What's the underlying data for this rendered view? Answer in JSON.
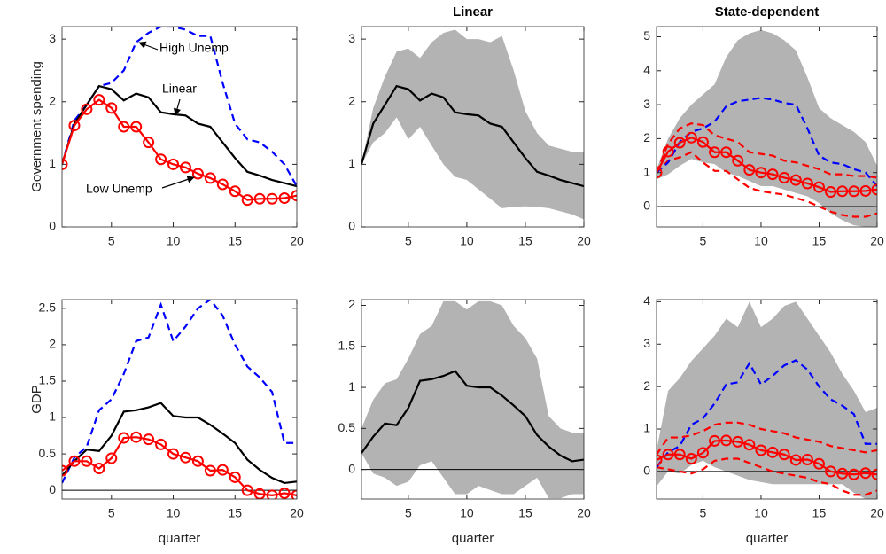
{
  "chart_data": [
    {
      "type": "line",
      "ylabel": "Government spending",
      "annotations": [
        "High Unemp",
        "Linear",
        "Low Unemp"
      ],
      "x": [
        1,
        2,
        3,
        4,
        5,
        6,
        7,
        8,
        9,
        10,
        11,
        12,
        13,
        14,
        15,
        16,
        17,
        18,
        19,
        20
      ],
      "xlim": [
        1,
        20
      ],
      "xticks": [
        5,
        10,
        15,
        20
      ],
      "ylim": [
        0,
        3.2
      ],
      "yticks": [
        0,
        1,
        2,
        3
      ],
      "zero_line": false,
      "series": [
        {
          "style": "dashed",
          "color": "#0000ff",
          "values": [
            1,
            1.7,
            1.95,
            2.25,
            2.3,
            2.5,
            2.95,
            3.1,
            3.2,
            3.2,
            3.15,
            3.05,
            3.05,
            2.3,
            1.65,
            1.4,
            1.35,
            1.2,
            1.0,
            0.65
          ]
        },
        {
          "style": "solid",
          "color": "#000000",
          "values": [
            1,
            1.65,
            1.95,
            2.25,
            2.2,
            2.02,
            2.13,
            2.07,
            1.83,
            1.8,
            1.78,
            1.65,
            1.6,
            1.35,
            1.1,
            0.88,
            0.82,
            0.75,
            0.7,
            0.65
          ]
        },
        {
          "style": "circles",
          "color": "#ff0000",
          "values": [
            1,
            1.62,
            1.88,
            2.03,
            1.9,
            1.6,
            1.6,
            1.35,
            1.08,
            1.0,
            0.95,
            0.85,
            0.78,
            0.68,
            0.57,
            0.43,
            0.45,
            0.45,
            0.46,
            0.5
          ]
        }
      ]
    },
    {
      "type": "line",
      "title": "Linear",
      "x": [
        1,
        2,
        3,
        4,
        5,
        6,
        7,
        8,
        9,
        10,
        11,
        12,
        13,
        14,
        15,
        16,
        17,
        18,
        19,
        20
      ],
      "xlim": [
        1,
        20
      ],
      "xticks": [
        5,
        10,
        15,
        20
      ],
      "ylim": [
        0,
        3.2
      ],
      "yticks": [
        0,
        1,
        2,
        3
      ],
      "zero_line": false,
      "band": {
        "color": "#b3b3b3",
        "lower": [
          1,
          1.35,
          1.5,
          1.75,
          1.4,
          1.6,
          1.3,
          1.0,
          0.8,
          0.75,
          0.6,
          0.45,
          0.3,
          0.32,
          0.33,
          0.32,
          0.3,
          0.25,
          0.2,
          0.12
        ],
        "upper": [
          1,
          1.9,
          2.4,
          2.8,
          2.85,
          2.7,
          2.95,
          3.1,
          3.15,
          3.0,
          3.0,
          2.95,
          3.05,
          2.5,
          1.85,
          1.5,
          1.3,
          1.25,
          1.2,
          1.2
        ]
      },
      "series": [
        {
          "style": "solid",
          "color": "#000000",
          "values": [
            1,
            1.65,
            1.95,
            2.25,
            2.2,
            2.02,
            2.13,
            2.07,
            1.83,
            1.8,
            1.78,
            1.65,
            1.6,
            1.35,
            1.1,
            0.88,
            0.82,
            0.75,
            0.7,
            0.65
          ]
        }
      ]
    },
    {
      "type": "line",
      "title": "State-dependent",
      "x": [
        1,
        2,
        3,
        4,
        5,
        6,
        7,
        8,
        9,
        10,
        11,
        12,
        13,
        14,
        15,
        16,
        17,
        18,
        19,
        20
      ],
      "xlim": [
        1,
        20
      ],
      "xticks": [
        5,
        10,
        15,
        20
      ],
      "ylim": [
        -0.6,
        5.3
      ],
      "yticks": [
        0,
        1,
        2,
        3,
        4,
        5
      ],
      "zero_line": true,
      "band": {
        "color": "#b3b3b3",
        "lower": [
          0.8,
          0.95,
          1.2,
          1.4,
          1.3,
          1.25,
          1.0,
          0.9,
          0.75,
          0.6,
          0.6,
          0.5,
          0.4,
          0.3,
          0.1,
          -0.2,
          -0.4,
          -0.55,
          -0.6,
          -0.6
        ],
        "upper": [
          1.1,
          2.0,
          2.6,
          3.0,
          3.3,
          3.6,
          4.4,
          4.9,
          5.1,
          5.2,
          5.1,
          4.9,
          4.6,
          3.8,
          2.9,
          2.6,
          2.4,
          2.2,
          1.9,
          1.2
        ]
      },
      "series": [
        {
          "style": "dashed",
          "color": "#ff0000",
          "values": [
            1,
            1.85,
            2.3,
            2.45,
            2.4,
            2.1,
            2.0,
            1.9,
            1.6,
            1.55,
            1.5,
            1.35,
            1.3,
            1.2,
            1.1,
            0.95,
            0.95,
            0.9,
            0.9,
            0.85
          ]
        },
        {
          "style": "dashed",
          "color": "#ff0000",
          "values": [
            1,
            1.35,
            1.45,
            1.6,
            1.3,
            1.05,
            1.05,
            0.8,
            0.55,
            0.45,
            0.4,
            0.35,
            0.25,
            0.15,
            0.0,
            -0.15,
            -0.25,
            -0.3,
            -0.3,
            -0.2
          ]
        },
        {
          "style": "dashed",
          "color": "#0000ff",
          "values": [
            1,
            1.3,
            1.9,
            2.2,
            2.3,
            2.5,
            2.95,
            3.1,
            3.15,
            3.2,
            3.15,
            3.05,
            3.0,
            2.3,
            1.5,
            1.3,
            1.25,
            1.1,
            1.0,
            0.6
          ]
        },
        {
          "style": "circles",
          "color": "#ff0000",
          "values": [
            1,
            1.62,
            1.88,
            2.03,
            1.9,
            1.6,
            1.6,
            1.35,
            1.08,
            1.0,
            0.95,
            0.85,
            0.78,
            0.68,
            0.57,
            0.43,
            0.45,
            0.45,
            0.46,
            0.5
          ]
        }
      ]
    },
    {
      "type": "line",
      "ylabel": "GDP",
      "xlabel": "quarter",
      "x": [
        1,
        2,
        3,
        4,
        5,
        6,
        7,
        8,
        9,
        10,
        11,
        12,
        13,
        14,
        15,
        16,
        17,
        18,
        19,
        20
      ],
      "xlim": [
        1,
        20
      ],
      "xticks": [
        5,
        10,
        15,
        20
      ],
      "ylim": [
        -0.12,
        2.62
      ],
      "yticks": [
        0,
        0.5,
        1,
        1.5,
        2,
        2.5
      ],
      "zero_line": true,
      "series": [
        {
          "style": "dashed",
          "color": "#0000ff",
          "values": [
            0.1,
            0.45,
            0.6,
            1.1,
            1.25,
            1.6,
            2.05,
            2.1,
            2.55,
            2.05,
            2.25,
            2.5,
            2.62,
            2.4,
            2.0,
            1.7,
            1.55,
            1.35,
            0.65,
            0.65
          ]
        },
        {
          "style": "solid",
          "color": "#000000",
          "values": [
            0.2,
            0.4,
            0.56,
            0.54,
            0.75,
            1.08,
            1.1,
            1.14,
            1.2,
            1.02,
            1.0,
            1.0,
            0.9,
            0.78,
            0.65,
            0.42,
            0.28,
            0.17,
            0.1,
            0.12
          ]
        },
        {
          "style": "circles",
          "color": "#ff0000",
          "values": [
            0.27,
            0.4,
            0.4,
            0.3,
            0.44,
            0.72,
            0.73,
            0.7,
            0.63,
            0.5,
            0.45,
            0.4,
            0.27,
            0.28,
            0.18,
            0.0,
            -0.05,
            -0.07,
            -0.04,
            -0.07
          ]
        }
      ]
    },
    {
      "type": "line",
      "xlabel": "quarter",
      "x": [
        1,
        2,
        3,
        4,
        5,
        6,
        7,
        8,
        9,
        10,
        11,
        12,
        13,
        14,
        15,
        16,
        17,
        18,
        19,
        20
      ],
      "xlim": [
        1,
        20
      ],
      "xticks": [
        5,
        10,
        15,
        20
      ],
      "ylim": [
        -0.36,
        2.07
      ],
      "yticks": [
        0,
        0.5,
        1,
        1.5,
        2
      ],
      "zero_line": true,
      "band": {
        "color": "#b3b3b3",
        "lower": [
          0.2,
          -0.05,
          -0.1,
          -0.2,
          -0.15,
          0.05,
          0.1,
          -0.1,
          -0.3,
          -0.3,
          -0.2,
          -0.25,
          -0.3,
          -0.3,
          -0.2,
          -0.1,
          -0.35,
          -0.35,
          -0.3,
          -0.3
        ],
        "upper": [
          0.5,
          0.85,
          1.05,
          1.1,
          1.35,
          1.65,
          1.75,
          2.05,
          2.05,
          1.95,
          2.05,
          2.05,
          2.0,
          1.75,
          1.6,
          1.35,
          0.65,
          0.5,
          0.45,
          0.45
        ]
      },
      "series": [
        {
          "style": "solid",
          "color": "#000000",
          "values": [
            0.2,
            0.4,
            0.56,
            0.54,
            0.75,
            1.08,
            1.1,
            1.14,
            1.2,
            1.02,
            1.0,
            1.0,
            0.9,
            0.78,
            0.65,
            0.42,
            0.28,
            0.17,
            0.1,
            0.12
          ]
        }
      ]
    },
    {
      "type": "line",
      "xlabel": "quarter",
      "x": [
        1,
        2,
        3,
        4,
        5,
        6,
        7,
        8,
        9,
        10,
        11,
        12,
        13,
        14,
        15,
        16,
        17,
        18,
        19,
        20
      ],
      "xlim": [
        1,
        20
      ],
      "xticks": [
        5,
        10,
        15,
        20
      ],
      "ylim": [
        -0.65,
        4.05
      ],
      "yticks": [
        0,
        1,
        2,
        3,
        4
      ],
      "zero_line": true,
      "band": {
        "color": "#b3b3b3",
        "lower": [
          -0.35,
          0.0,
          -0.05,
          0.15,
          0.25,
          0.1,
          0.0,
          -0.1,
          -0.2,
          -0.25,
          -0.3,
          -0.3,
          -0.3,
          -0.3,
          -0.3,
          -0.3,
          -0.3,
          -0.5,
          -0.65,
          -0.65
        ],
        "upper": [
          0.5,
          1.9,
          2.2,
          2.6,
          2.9,
          3.2,
          3.6,
          3.4,
          4.0,
          3.4,
          3.6,
          3.9,
          4.0,
          3.6,
          3.2,
          2.8,
          2.3,
          1.9,
          1.4,
          1.5
        ]
      },
      "series": [
        {
          "style": "dashed",
          "color": "#ff0000",
          "values": [
            0.4,
            0.8,
            0.8,
            0.85,
            0.95,
            1.1,
            1.15,
            1.15,
            1.1,
            1.0,
            0.95,
            0.9,
            0.8,
            0.75,
            0.7,
            0.6,
            0.55,
            0.5,
            0.45,
            0.5
          ]
        },
        {
          "style": "dashed",
          "color": "#ff0000",
          "values": [
            0.1,
            0.05,
            0.0,
            -0.05,
            0.05,
            0.25,
            0.3,
            0.3,
            0.2,
            0.1,
            0.0,
            -0.05,
            -0.1,
            -0.15,
            -0.25,
            -0.3,
            -0.45,
            -0.55,
            -0.55,
            -0.45
          ]
        },
        {
          "style": "dashed",
          "color": "#0000ff",
          "values": [
            0.1,
            0.45,
            0.6,
            1.1,
            1.25,
            1.6,
            2.05,
            2.1,
            2.55,
            2.05,
            2.25,
            2.5,
            2.62,
            2.4,
            2.0,
            1.7,
            1.55,
            1.35,
            0.65,
            0.65
          ]
        },
        {
          "style": "circles",
          "color": "#ff0000",
          "values": [
            0.27,
            0.4,
            0.4,
            0.3,
            0.44,
            0.72,
            0.73,
            0.7,
            0.63,
            0.5,
            0.45,
            0.4,
            0.27,
            0.28,
            0.18,
            0.0,
            -0.05,
            -0.07,
            -0.04,
            -0.07
          ]
        }
      ]
    }
  ]
}
